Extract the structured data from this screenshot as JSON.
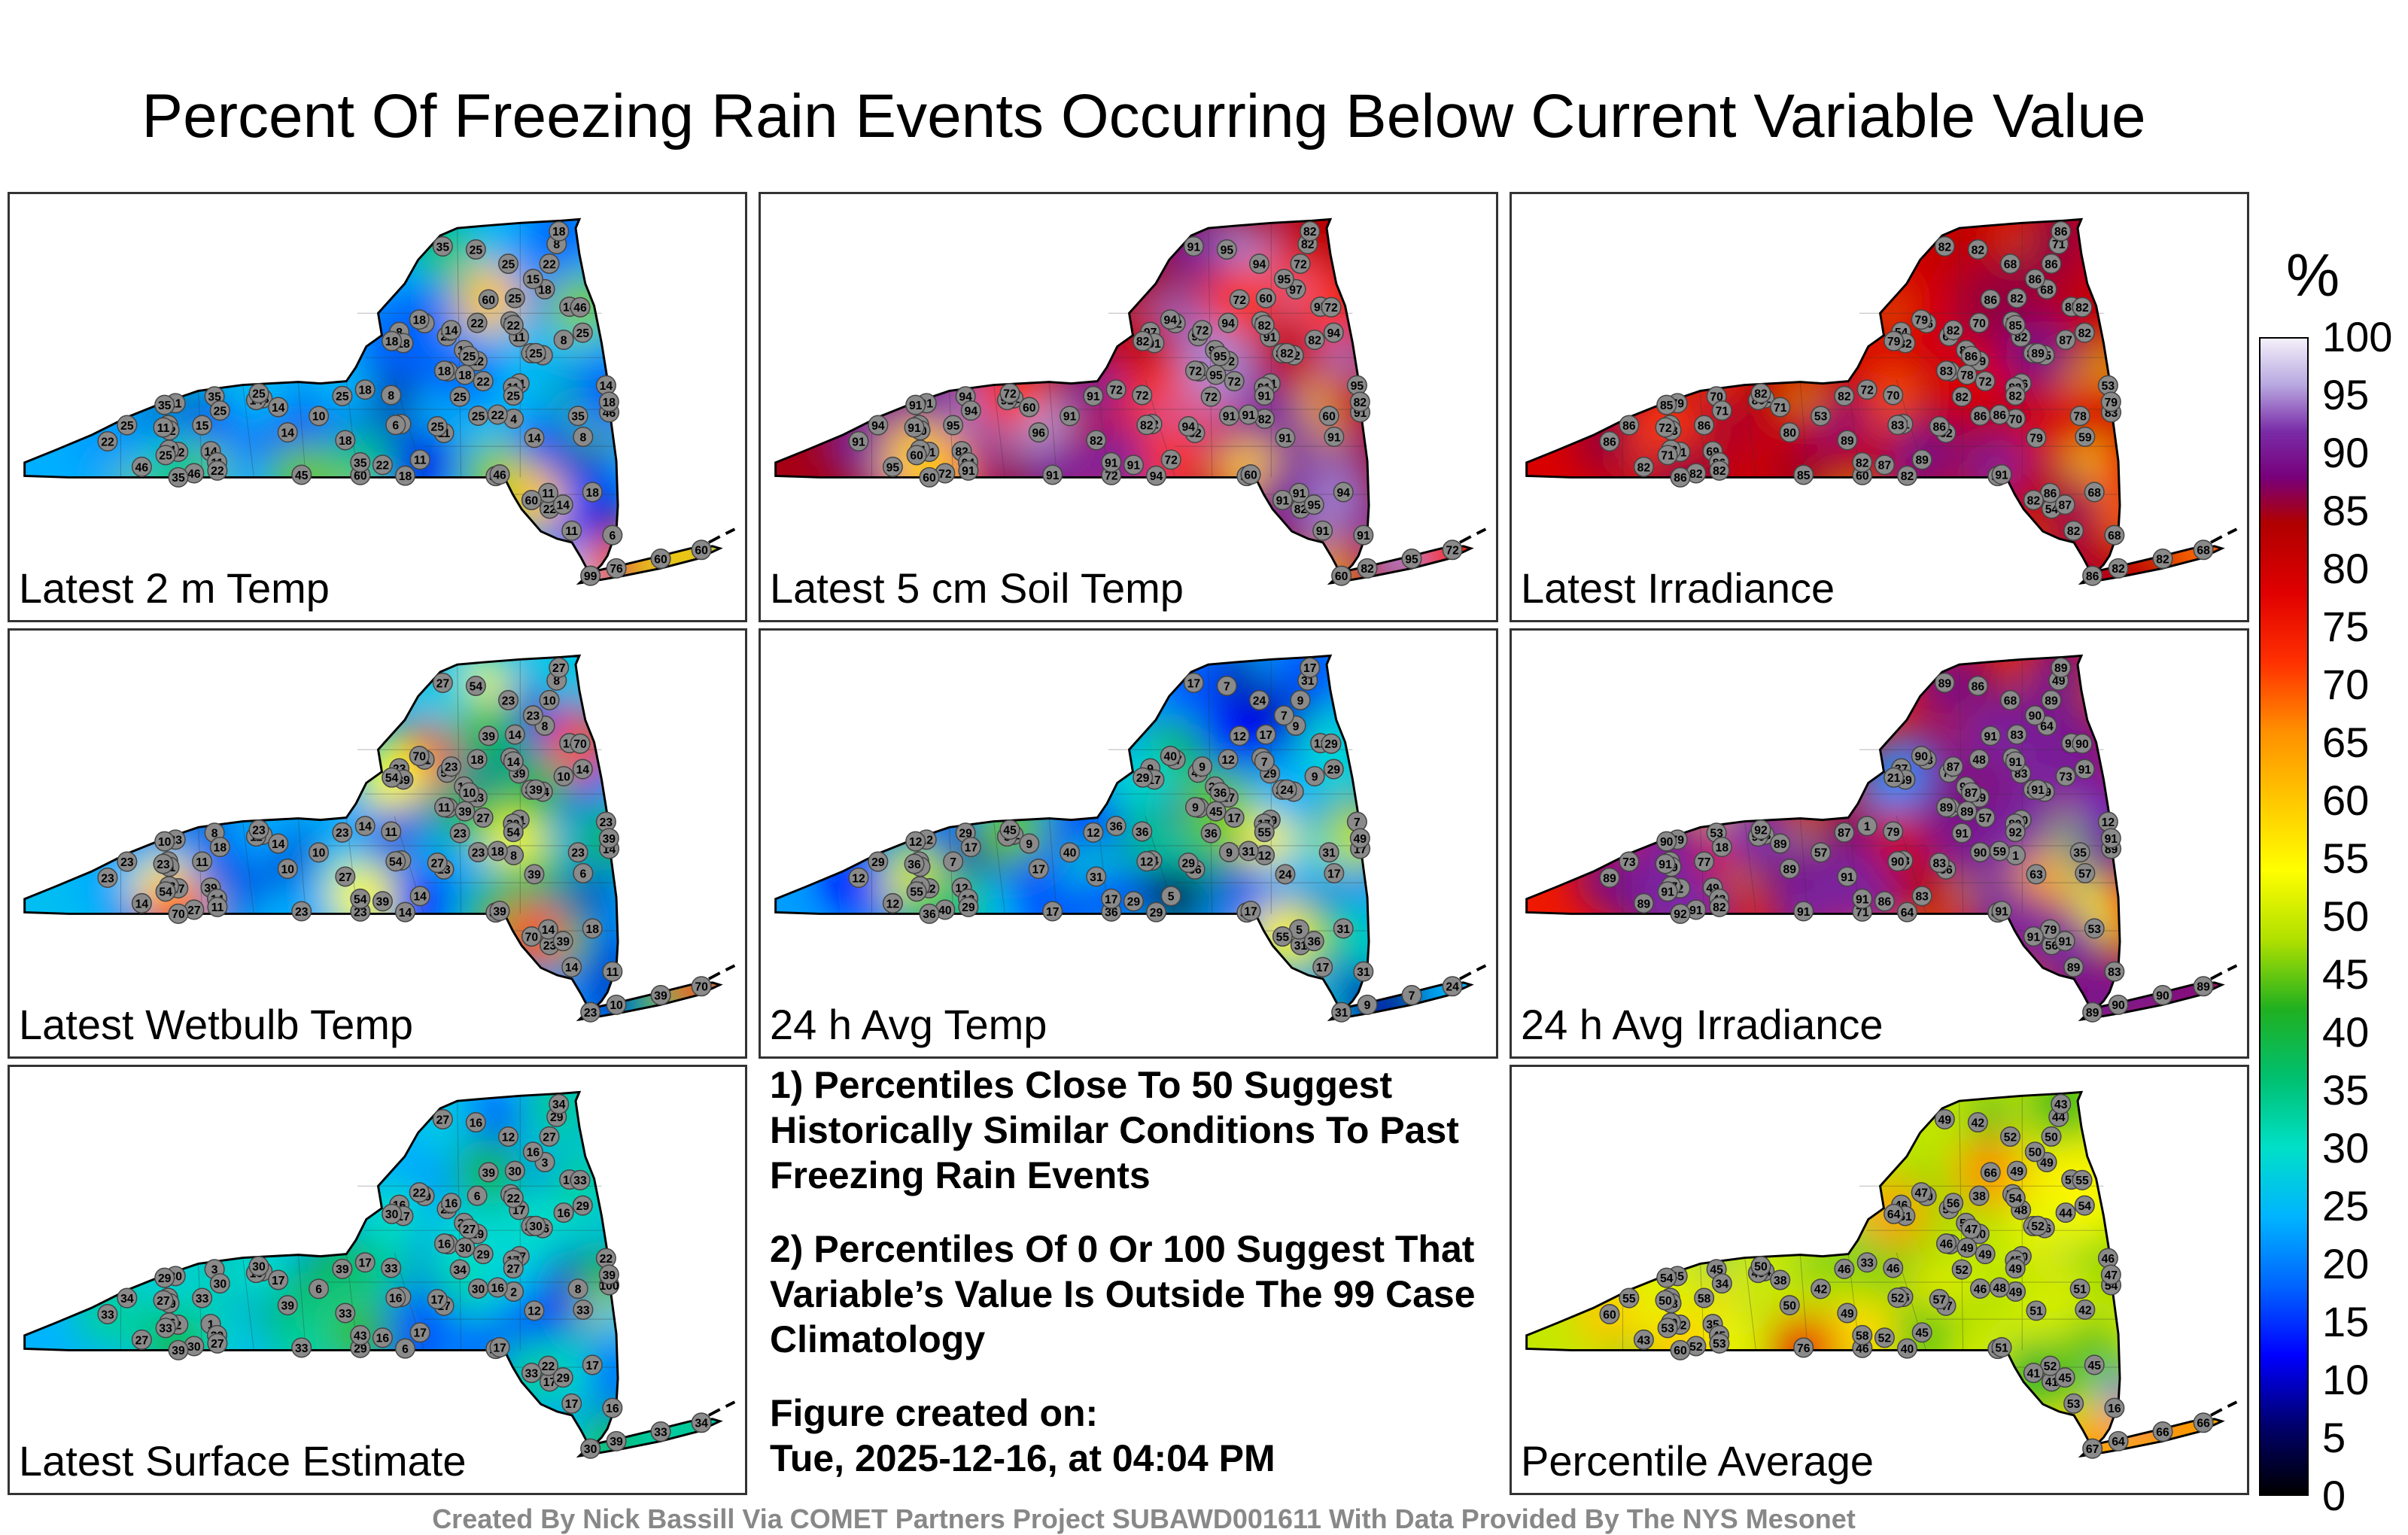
{
  "title": "Percent Of Freezing Rain Events Occurring Below Current Variable Value",
  "panels": [
    {
      "id": "p1",
      "label": "Latest 2 m Temp",
      "scheme": "cool",
      "stations": [
        22,
        18,
        60,
        22,
        6,
        35,
        18,
        14,
        8,
        8,
        25,
        14,
        8,
        6,
        18,
        22,
        14,
        8,
        10,
        18,
        4,
        22,
        35,
        25,
        35,
        22,
        22,
        18,
        18,
        11,
        22,
        14,
        11,
        15,
        25,
        14,
        25,
        22,
        46,
        22,
        6,
        14,
        11,
        25,
        8,
        8,
        11,
        14,
        35,
        25,
        14,
        22,
        11,
        11,
        8,
        22,
        25,
        15,
        35,
        22,
        18,
        46,
        25,
        35,
        14,
        11,
        22,
        22,
        11,
        14,
        25,
        25,
        18,
        10,
        25,
        46,
        18,
        25,
        11,
        18,
        14,
        25,
        11,
        18,
        46,
        25,
        18,
        60,
        18,
        25,
        35,
        46,
        35,
        25,
        45,
        60,
        99,
        76,
        60,
        60
      ]
    },
    {
      "id": "p2",
      "label": "Latest 5 cm Soil Temp",
      "scheme": "warm",
      "stations": [
        82,
        94,
        72,
        91,
        91,
        94,
        97,
        82,
        72,
        91,
        94,
        95,
        97,
        82,
        72,
        94,
        60,
        82,
        91,
        72,
        82,
        91,
        60,
        94,
        91,
        91,
        72,
        91,
        94,
        82,
        91,
        91,
        94,
        95,
        94,
        96,
        60,
        91,
        95,
        72,
        82,
        91,
        91,
        91,
        72,
        82,
        91,
        91,
        94,
        95,
        72,
        60,
        91,
        91,
        82,
        91,
        94,
        95,
        91,
        82,
        72,
        91,
        91,
        91,
        82,
        72,
        72,
        91,
        91,
        95,
        94,
        91,
        82,
        91,
        72,
        60,
        82,
        95,
        91,
        94,
        95,
        72,
        91,
        82,
        72,
        91,
        82,
        91,
        95,
        60,
        60,
        72,
        91,
        82,
        91,
        72,
        60,
        82,
        95,
        72
      ]
    },
    {
      "id": "p3",
      "label": "Latest Irradiance",
      "scheme": "irr",
      "stations": [
        54,
        68,
        60,
        64,
        68,
        70,
        68,
        69,
        65,
        59,
        71,
        53,
        54,
        71,
        72,
        70,
        71,
        71,
        53,
        72,
        70,
        71,
        78,
        68,
        91,
        86,
        72,
        82,
        82,
        82,
        82,
        79,
        86,
        86,
        86,
        80,
        82,
        82,
        82,
        79,
        83,
        83,
        82,
        78,
        70,
        87,
        86,
        86,
        80,
        82,
        82,
        83,
        82,
        79,
        86,
        87,
        86,
        86,
        85,
        85,
        83,
        83,
        82,
        82,
        86,
        89,
        86,
        86,
        86,
        85,
        82,
        86,
        86,
        86,
        82,
        91,
        89,
        86,
        82,
        79,
        87,
        82,
        72,
        79,
        82,
        82,
        79,
        82,
        78,
        71,
        86,
        82,
        82,
        89,
        85,
        86,
        86,
        82,
        82,
        68
      ]
    },
    {
      "id": "p4",
      "label": "Latest Wetbulb Temp",
      "scheme": "cool",
      "stations": [
        23,
        18,
        23,
        54,
        11,
        8,
        8,
        39,
        14,
        6,
        18,
        23,
        23,
        3,
        8,
        18,
        14,
        8,
        10,
        14,
        8,
        27,
        23,
        23,
        39,
        18,
        27,
        39,
        14,
        23,
        23,
        39,
        14,
        11,
        23,
        10,
        14,
        11,
        14,
        23,
        54,
        23,
        39,
        14,
        11,
        10,
        14,
        11,
        23,
        54,
        23,
        11,
        14,
        23,
        11,
        39,
        27,
        23,
        10,
        14,
        11,
        14,
        23,
        27,
        39,
        14,
        10,
        23,
        11,
        14,
        14,
        23,
        27,
        10,
        23,
        39,
        27,
        10,
        39,
        70,
        39,
        23,
        23,
        54,
        27,
        54,
        39,
        70,
        39,
        54,
        70,
        70,
        54,
        39,
        23,
        39,
        23,
        10,
        39,
        70
      ]
    },
    {
      "id": "p5",
      "label": "24 h Avg Temp",
      "scheme": "cool",
      "stations": [
        31,
        31,
        36,
        49,
        31,
        29,
        9,
        12,
        9,
        17,
        17,
        7,
        9,
        24,
        12,
        12,
        9,
        31,
        40,
        36,
        12,
        12,
        31,
        24,
        36,
        31,
        17,
        17,
        29,
        36,
        31,
        24,
        12,
        7,
        29,
        17,
        17,
        29,
        12,
        17,
        12,
        7,
        29,
        7,
        36,
        9,
        5,
        5,
        12,
        7,
        9,
        9,
        17,
        12,
        17,
        29,
        29,
        7,
        12,
        7,
        9,
        17,
        12,
        17,
        29,
        5,
        9,
        12,
        29,
        12,
        29,
        9,
        17,
        24,
        36,
        17,
        31,
        36,
        17,
        40,
        36,
        45,
        36,
        29,
        40,
        55,
        49,
        55,
        45,
        55,
        36,
        29,
        17,
        24,
        17,
        12,
        31,
        9,
        7,
        24
      ]
    },
    {
      "id": "p6",
      "label": "24 h Avg Irradiance",
      "scheme": "irr",
      "stations": [
        56,
        53,
        71,
        79,
        83,
        53,
        64,
        49,
        59,
        57,
        18,
        12,
        37,
        38,
        53,
        48,
        89,
        49,
        57,
        1,
        1,
        2,
        35,
        68,
        89,
        59,
        57,
        59,
        64,
        56,
        73,
        63,
        48,
        77,
        73,
        89,
        83,
        82,
        89,
        89,
        90,
        87,
        83,
        81,
        79,
        73,
        79,
        90,
        89,
        86,
        87,
        89,
        89,
        79,
        73,
        86,
        83,
        90,
        90,
        91,
        89,
        89,
        87,
        89,
        86,
        83,
        89,
        89,
        90,
        91,
        91,
        90,
        89,
        90,
        91,
        91,
        91,
        87,
        89,
        90,
        91,
        92,
        91,
        21,
        91,
        92,
        91,
        91,
        89,
        91,
        92,
        90,
        91,
        91,
        91,
        91,
        89,
        90,
        90,
        89
      ]
    },
    {
      "id": "p7",
      "label": "Latest Surface Estimate",
      "scheme": "cool",
      "stations": [
        17,
        17,
        29,
        22,
        16,
        3,
        3,
        1,
        16,
        33,
        30,
        22,
        16,
        6,
        3,
        6,
        17,
        29,
        6,
        17,
        2,
        2,
        8,
        12,
        17,
        16,
        29,
        17,
        6,
        17,
        8,
        12,
        39,
        33,
        34,
        39,
        30,
        27,
        27,
        29,
        16,
        16,
        17,
        27,
        33,
        16,
        22,
        16,
        33,
        16,
        16,
        29,
        17,
        30,
        29,
        16,
        17,
        16,
        29,
        22,
        16,
        100,
        39,
        27,
        29,
        17,
        27,
        33,
        17,
        16,
        29,
        30,
        34,
        29,
        34,
        17,
        33,
        27,
        17,
        22,
        29,
        30,
        27,
        30,
        30,
        27,
        39,
        33,
        30,
        33,
        39,
        33,
        43,
        30,
        33,
        39,
        30,
        39,
        33,
        34
      ]
    },
    {
      "id": "p8",
      "label": "Percentile Average",
      "scheme": "avg",
      "stations": [
        41,
        45,
        46,
        56,
        16,
        45,
        49,
        35,
        36,
        42,
        34,
        46,
        46,
        56,
        24,
        38,
        38,
        44,
        42,
        33,
        49,
        52,
        51,
        52,
        51,
        48,
        49,
        51,
        40,
        47,
        56,
        51,
        45,
        58,
        55,
        50,
        49,
        53,
        43,
        40,
        52,
        50,
        48,
        54,
        46,
        44,
        52,
        49,
        52,
        42,
        56,
        48,
        53,
        45,
        50,
        52,
        57,
        50,
        54,
        54,
        46,
        54,
        46,
        49,
        45,
        45,
        50,
        60,
        70,
        57,
        54,
        46,
        43,
        59,
        52,
        51,
        49,
        47,
        45,
        47,
        45,
        50,
        50,
        64,
        52,
        49,
        47,
        41,
        49,
        53,
        60,
        55,
        58,
        52,
        76,
        66,
        67,
        64,
        66,
        66
      ]
    }
  ],
  "notes": {
    "note1": "1) Percentiles Close To 50 Suggest Historically Similar Conditions To Past Freezing Rain Events",
    "note2": "2) Percentiles Of 0 Or 100 Suggest That Variable’s Value Is Outside The 99 Case Climatology",
    "created_label": "Figure created on:",
    "created_value": "Tue, 2025-12-16, at 04:04 PM"
  },
  "colorbar": {
    "unit": "%",
    "ticks": [
      "100",
      "95",
      "90",
      "85",
      "80",
      "75",
      "70",
      "65",
      "60",
      "55",
      "50",
      "45",
      "40",
      "35",
      "30",
      "25",
      "20",
      "15",
      "10",
      "5",
      "0"
    ],
    "stops": [
      {
        "v": 0,
        "c": "#000000"
      },
      {
        "v": 6,
        "c": "#00006e"
      },
      {
        "v": 12,
        "c": "#0000ff"
      },
      {
        "v": 18,
        "c": "#0064ff"
      },
      {
        "v": 24,
        "c": "#00b4ff"
      },
      {
        "v": 30,
        "c": "#00e0c8"
      },
      {
        "v": 36,
        "c": "#00c070"
      },
      {
        "v": 42,
        "c": "#20b020"
      },
      {
        "v": 48,
        "c": "#b0e000"
      },
      {
        "v": 54,
        "c": "#ffff00"
      },
      {
        "v": 60,
        "c": "#ffc800"
      },
      {
        "v": 66,
        "c": "#ff9000"
      },
      {
        "v": 72,
        "c": "#ff3000"
      },
      {
        "v": 78,
        "c": "#e00000"
      },
      {
        "v": 84,
        "c": "#b00000"
      },
      {
        "v": 88,
        "c": "#78007a"
      },
      {
        "v": 92,
        "c": "#7a2ca8"
      },
      {
        "v": 96,
        "c": "#b8a8e0"
      },
      {
        "v": 100,
        "c": "#f4f0fa"
      }
    ]
  },
  "footer": "Created By Nick Bassill Via COMET Partners Project SUBAWD001611 With Data Provided By The NYS Mesonet"
}
